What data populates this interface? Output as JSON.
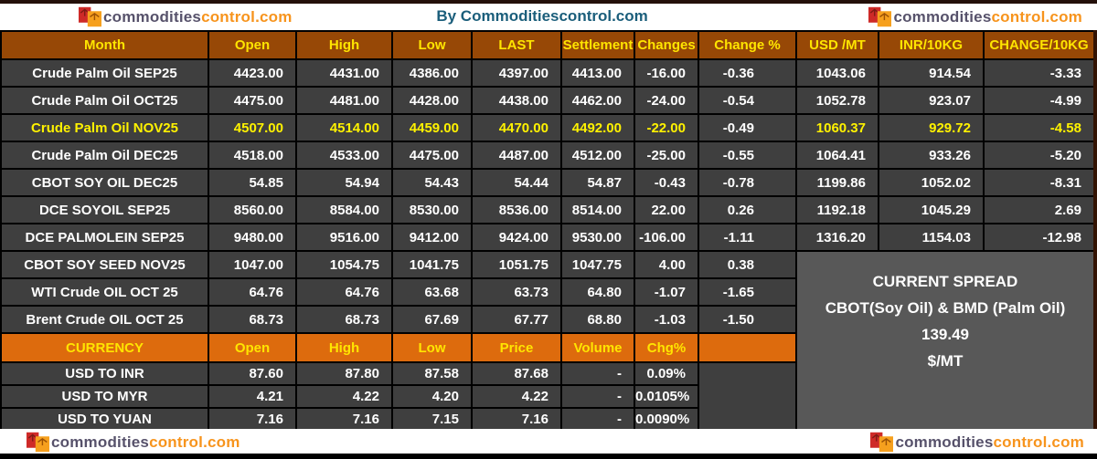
{
  "branding": {
    "logo_text_primary": "commodities",
    "logo_text_secondary": "control.com",
    "title": "By Commoditiescontrol.com"
  },
  "futures_table": {
    "columns": [
      "Month",
      "Open",
      "High",
      "Low",
      "LAST",
      "Settlement",
      "Changes",
      "Change %",
      "USD /MT",
      "INR/10KG",
      "CHANGE/10KG"
    ],
    "rows": [
      {
        "highlight": false,
        "cells": [
          "Crude Palm Oil SEP25",
          "4423.00",
          "4431.00",
          "4386.00",
          "4397.00",
          "4413.00",
          "-16.00",
          "-0.36",
          "1043.06",
          "914.54",
          "-3.33"
        ]
      },
      {
        "highlight": false,
        "cells": [
          "Crude Palm Oil OCT25",
          "4475.00",
          "4481.00",
          "4428.00",
          "4438.00",
          "4462.00",
          "-24.00",
          "-0.54",
          "1052.78",
          "923.07",
          "-4.99"
        ]
      },
      {
        "highlight": true,
        "cells": [
          "Crude Palm Oil NOV25",
          "4507.00",
          "4514.00",
          "4459.00",
          "4470.00",
          "4492.00",
          "-22.00",
          "-0.49",
          "1060.37",
          "929.72",
          "-4.58"
        ]
      },
      {
        "highlight": false,
        "cells": [
          "Crude Palm Oil DEC25",
          "4518.00",
          "4533.00",
          "4475.00",
          "4487.00",
          "4512.00",
          "-25.00",
          "-0.55",
          "1064.41",
          "933.26",
          "-5.20"
        ]
      },
      {
        "highlight": false,
        "cells": [
          "CBOT SOY OIL DEC25",
          "54.85",
          "54.94",
          "54.43",
          "54.44",
          "54.87",
          "-0.43",
          "-0.78",
          "1199.86",
          "1052.02",
          "-8.31"
        ]
      },
      {
        "highlight": false,
        "cells": [
          "DCE SOYOIL SEP25",
          "8560.00",
          "8584.00",
          "8530.00",
          "8536.00",
          "8514.00",
          "22.00",
          "0.26",
          "1192.18",
          "1045.29",
          "2.69"
        ]
      },
      {
        "highlight": false,
        "cells": [
          "DCE PALMOLEIN SEP25",
          "9480.00",
          "9516.00",
          "9412.00",
          "9424.00",
          "9530.00",
          "-106.00",
          "-1.11",
          "1316.20",
          "1154.03",
          "-12.98"
        ]
      },
      {
        "highlight": false,
        "cells": [
          "CBOT SOY SEED NOV25",
          "1047.00",
          "1054.75",
          "1041.75",
          "1051.75",
          "1047.75",
          "4.00",
          "0.38"
        ]
      },
      {
        "highlight": false,
        "cells": [
          "WTI Crude OIL OCT 25",
          "64.76",
          "64.76",
          "63.68",
          "63.73",
          "64.80",
          "-1.07",
          "-1.65"
        ]
      },
      {
        "highlight": false,
        "cells": [
          "Brent Crude OIL OCT 25",
          "68.73",
          "68.73",
          "67.69",
          "67.77",
          "68.80",
          "-1.03",
          "-1.50"
        ]
      }
    ]
  },
  "currency_table": {
    "columns": [
      "CURRENCY",
      "Open",
      "High",
      "Low",
      "Price",
      "Volume",
      "Chg%"
    ],
    "rows": [
      [
        "USD TO INR",
        "87.60",
        "87.80",
        "87.58",
        "87.68",
        "-",
        "0.09%"
      ],
      [
        "USD TO MYR",
        "4.21",
        "4.22",
        "4.20",
        "4.22",
        "-",
        "0.0105%"
      ],
      [
        "USD TO YUAN",
        "7.16",
        "7.16",
        "7.15",
        "7.16",
        "-",
        "0.0090%"
      ]
    ]
  },
  "spread_box": {
    "lines": [
      "CURRENT SPREAD",
      "CBOT(Soy Oil) & BMD (Palm Oil)",
      "139.49",
      "$/MT"
    ]
  },
  "colors": {
    "table_header_bg": "#974806",
    "currency_header_bg": "#DD6B0D",
    "row_bg": "#3F3F3F",
    "spread_box_bg": "#585858",
    "header_text": "#FFE500",
    "highlight_text": "#FFF200",
    "body_text": "#FFFFFF",
    "title_text": "#1B5E7B",
    "logo_text_gray": "#57526B",
    "logo_text_orange": "#F7941D"
  },
  "icons": {
    "logo_mark": "scales-icon"
  }
}
